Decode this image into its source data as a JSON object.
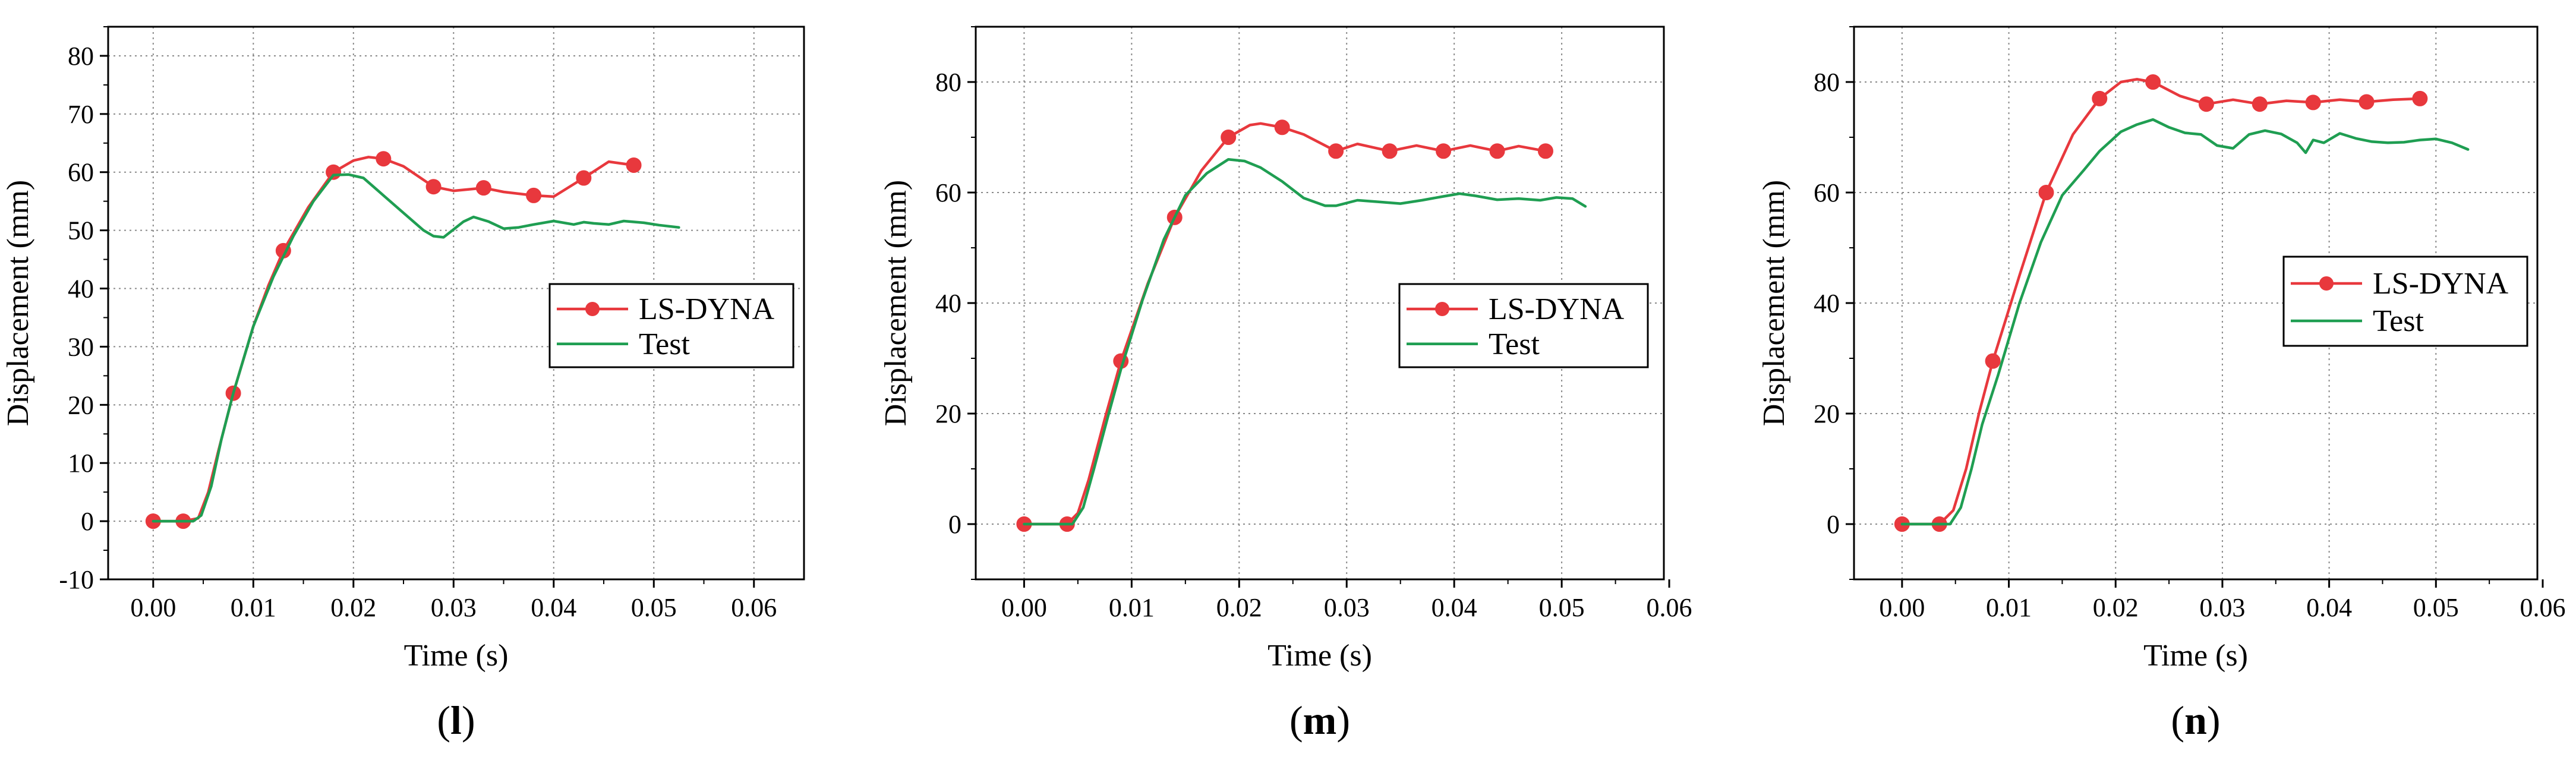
{
  "figure": {
    "colors": {
      "ls_dyna": "#e8383d",
      "test": "#1f9e52",
      "grid": "#8a8a8a",
      "axis": "#000000"
    }
  },
  "chart_data": [
    {
      "type": "line",
      "panel_label": "l",
      "xlabel": "Time (s)",
      "ylabel": "Displacement (mm)",
      "xlim": [
        -0.0045,
        0.065
      ],
      "ylim": [
        -10,
        85
      ],
      "x_ticks": [
        0.0,
        0.01,
        0.02,
        0.03,
        0.04,
        0.05,
        0.06
      ],
      "x_tick_labels": [
        "0.00",
        "0.01",
        "0.02",
        "0.03",
        "0.04",
        "0.05",
        "0.06"
      ],
      "y_ticks": [
        -10,
        0,
        10,
        20,
        30,
        40,
        50,
        60,
        70,
        80
      ],
      "y_tick_labels": [
        "-10",
        "0",
        "10",
        "20",
        "30",
        "40",
        "50",
        "60",
        "70",
        "80"
      ],
      "grid": true,
      "legend_position": "middle-right",
      "series": [
        {
          "name": "LS-DYNA",
          "color": "#e8383d",
          "marker": "circle",
          "x": [
            0.0,
            0.003,
            0.0045,
            0.0055,
            0.0065,
            0.008,
            0.01,
            0.0115,
            0.013,
            0.0155,
            0.018,
            0.02,
            0.0215,
            0.023,
            0.025,
            0.028,
            0.03,
            0.033,
            0.035,
            0.038,
            0.04,
            0.043,
            0.0455,
            0.048
          ],
          "y": [
            0.0,
            0.0,
            0.5,
            5.0,
            12.0,
            22.0,
            33.5,
            40.5,
            46.5,
            54.0,
            60.0,
            62.0,
            62.6,
            62.3,
            61.0,
            57.5,
            56.8,
            57.3,
            56.6,
            56.0,
            55.8,
            59.0,
            61.8,
            61.2
          ],
          "marker_x": [
            0.0,
            0.003,
            0.008,
            0.013,
            0.018,
            0.023,
            0.028,
            0.033,
            0.038,
            0.043,
            0.048
          ],
          "marker_y": [
            0.0,
            0.0,
            22.0,
            46.5,
            60.0,
            62.3,
            57.5,
            57.3,
            56.0,
            59.0,
            61.2
          ]
        },
        {
          "name": "Test",
          "color": "#1f9e52",
          "x": [
            0.0,
            0.004,
            0.0048,
            0.0058,
            0.0068,
            0.008,
            0.01,
            0.012,
            0.014,
            0.016,
            0.018,
            0.0195,
            0.021,
            0.023,
            0.025,
            0.027,
            0.028,
            0.029,
            0.031,
            0.032,
            0.0335,
            0.035,
            0.0365,
            0.038,
            0.04,
            0.042,
            0.043,
            0.044,
            0.0455,
            0.047,
            0.049,
            0.0505,
            0.0525
          ],
          "y": [
            0.0,
            0.0,
            1.0,
            6.0,
            14.0,
            22.0,
            33.5,
            42.0,
            49.0,
            55.0,
            59.5,
            59.6,
            59.0,
            56.0,
            53.0,
            50.0,
            49.0,
            48.8,
            51.5,
            52.3,
            51.5,
            50.3,
            50.5,
            51.0,
            51.6,
            51.0,
            51.4,
            51.2,
            51.0,
            51.6,
            51.3,
            50.9,
            50.5
          ]
        }
      ]
    },
    {
      "type": "line",
      "panel_label": "m",
      "xlabel": "Time (s)",
      "ylabel": "Displacement (mm)",
      "xlim": [
        -0.0045,
        0.0595
      ],
      "ylim": [
        -10,
        90
      ],
      "x_ticks": [
        0.0,
        0.01,
        0.02,
        0.03,
        0.04,
        0.05,
        0.06
      ],
      "x_tick_labels": [
        "0.00",
        "0.01",
        "0.02",
        "0.03",
        "0.04",
        "0.05",
        "0.06"
      ],
      "y_ticks": [
        0,
        20,
        40,
        60,
        80
      ],
      "y_tick_labels": [
        "0",
        "20",
        "40",
        "60",
        "80"
      ],
      "grid": true,
      "legend_position": "middle-right",
      "series": [
        {
          "name": "LS-DYNA",
          "color": "#e8383d",
          "marker": "circle",
          "x": [
            0.0,
            0.004,
            0.005,
            0.006,
            0.0075,
            0.009,
            0.0115,
            0.014,
            0.0165,
            0.019,
            0.021,
            0.022,
            0.024,
            0.026,
            0.029,
            0.031,
            0.034,
            0.0365,
            0.039,
            0.0415,
            0.044,
            0.046,
            0.0485
          ],
          "y": [
            0.0,
            0.0,
            2.0,
            8.0,
            19.0,
            29.5,
            43.5,
            55.5,
            64.0,
            70.0,
            72.2,
            72.5,
            71.8,
            70.5,
            67.5,
            68.8,
            67.5,
            68.5,
            67.5,
            68.5,
            67.5,
            68.4,
            67.5
          ],
          "marker_x": [
            0.0,
            0.004,
            0.009,
            0.014,
            0.019,
            0.024,
            0.029,
            0.034,
            0.039,
            0.044,
            0.0485
          ],
          "marker_y": [
            0.0,
            0.0,
            29.5,
            55.5,
            70.0,
            71.8,
            67.5,
            67.5,
            67.5,
            67.5,
            67.5
          ]
        },
        {
          "name": "Test",
          "color": "#1f9e52",
          "x": [
            0.0,
            0.0045,
            0.0055,
            0.0065,
            0.0078,
            0.009,
            0.011,
            0.013,
            0.015,
            0.017,
            0.019,
            0.0205,
            0.022,
            0.024,
            0.026,
            0.028,
            0.029,
            0.031,
            0.033,
            0.035,
            0.037,
            0.039,
            0.0405,
            0.042,
            0.044,
            0.046,
            0.048,
            0.0495,
            0.051,
            0.0522
          ],
          "y": [
            0.0,
            0.0,
            3.0,
            10.0,
            19.5,
            28.0,
            40.5,
            51.5,
            59.5,
            63.5,
            66.0,
            65.7,
            64.5,
            62.0,
            59.0,
            57.6,
            57.6,
            58.6,
            58.3,
            58.0,
            58.6,
            59.3,
            59.8,
            59.4,
            58.7,
            58.9,
            58.6,
            59.1,
            58.9,
            57.5
          ]
        }
      ]
    },
    {
      "type": "line",
      "panel_label": "n",
      "xlabel": "Time (s)",
      "ylabel": "Displacement (mm)",
      "xlim": [
        -0.0045,
        0.0595
      ],
      "ylim": [
        -10,
        90
      ],
      "x_ticks": [
        0.0,
        0.01,
        0.02,
        0.03,
        0.04,
        0.05,
        0.06
      ],
      "x_tick_labels": [
        "0.00",
        "0.01",
        "0.02",
        "0.03",
        "0.04",
        "0.05",
        "0.06"
      ],
      "y_ticks": [
        0,
        20,
        40,
        60,
        80
      ],
      "y_tick_labels": [
        "0",
        "20",
        "40",
        "60",
        "80"
      ],
      "grid": true,
      "legend_position": "middle-right",
      "series": [
        {
          "name": "LS-DYNA",
          "color": "#e8383d",
          "marker": "circle",
          "x": [
            0.0,
            0.0035,
            0.0048,
            0.006,
            0.0072,
            0.0085,
            0.011,
            0.0135,
            0.016,
            0.0185,
            0.0205,
            0.022,
            0.0235,
            0.026,
            0.0285,
            0.031,
            0.0335,
            0.036,
            0.0385,
            0.041,
            0.0435,
            0.046,
            0.0485
          ],
          "y": [
            0.0,
            0.0,
            2.5,
            10.0,
            20.0,
            29.5,
            45.0,
            60.0,
            70.5,
            77.0,
            80.0,
            80.5,
            80.0,
            77.5,
            76.0,
            76.8,
            76.0,
            76.6,
            76.3,
            76.8,
            76.4,
            76.8,
            77.0
          ],
          "marker_x": [
            0.0,
            0.0035,
            0.0085,
            0.0135,
            0.0185,
            0.0235,
            0.0285,
            0.0335,
            0.0385,
            0.0435,
            0.0485
          ],
          "marker_y": [
            0.0,
            0.0,
            29.5,
            60.0,
            77.0,
            80.0,
            76.0,
            76.0,
            76.3,
            76.4,
            77.0
          ]
        },
        {
          "name": "Test",
          "color": "#1f9e52",
          "x": [
            0.0,
            0.0045,
            0.0055,
            0.0065,
            0.0075,
            0.009,
            0.011,
            0.013,
            0.015,
            0.017,
            0.0185,
            0.0205,
            0.022,
            0.0235,
            0.025,
            0.0265,
            0.028,
            0.0295,
            0.031,
            0.0325,
            0.034,
            0.0355,
            0.037,
            0.0378,
            0.0385,
            0.0395,
            0.041,
            0.0425,
            0.044,
            0.0455,
            0.047,
            0.0485,
            0.05,
            0.0515,
            0.053
          ],
          "y": [
            0.0,
            0.0,
            3.0,
            10.0,
            18.0,
            27.0,
            40.0,
            51.0,
            59.5,
            64.0,
            67.5,
            71.0,
            72.3,
            73.2,
            71.8,
            70.8,
            70.5,
            68.5,
            68.0,
            70.5,
            71.2,
            70.6,
            69.0,
            67.2,
            69.5,
            69.0,
            70.7,
            69.8,
            69.2,
            69.0,
            69.1,
            69.5,
            69.7,
            69.0,
            67.8
          ]
        }
      ]
    }
  ]
}
